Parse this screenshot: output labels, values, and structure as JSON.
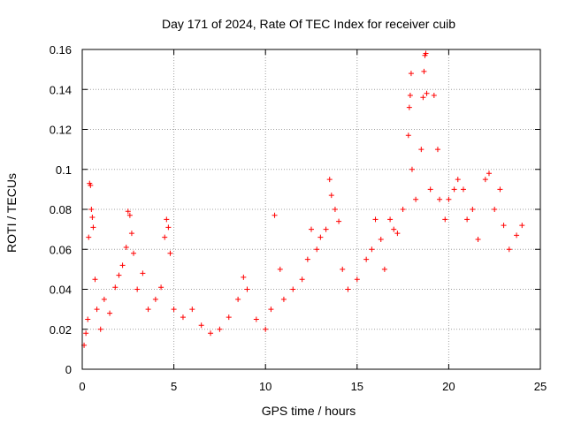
{
  "chart_data": {
    "type": "scatter",
    "title": "Day 171 of 2024, Rate Of TEC Index for receiver cuib",
    "xlabel": "GPS time / hours",
    "ylabel": "ROTI / TECUs",
    "xlim": [
      0,
      25
    ],
    "ylim": [
      0,
      0.16
    ],
    "xticks": [
      0,
      5,
      10,
      15,
      20,
      25
    ],
    "xtick_labels": [
      "0",
      "5",
      "10",
      "15",
      "20",
      "25"
    ],
    "yticks": [
      0,
      0.02,
      0.04,
      0.06,
      0.08,
      0.1,
      0.12,
      0.14,
      0.16
    ],
    "ytick_labels": [
      "0",
      "0.02",
      "0.04",
      "0.06",
      "0.08",
      "0.1",
      "0.12",
      "0.14",
      "0.16"
    ],
    "grid": true,
    "marker": "+",
    "color": "#ff0000",
    "series": [
      {
        "name": "ROTI",
        "points": [
          [
            0.1,
            0.012
          ],
          [
            0.2,
            0.018
          ],
          [
            0.3,
            0.025
          ],
          [
            0.35,
            0.066
          ],
          [
            0.4,
            0.093
          ],
          [
            0.45,
            0.092
          ],
          [
            0.5,
            0.08
          ],
          [
            0.55,
            0.076
          ],
          [
            0.6,
            0.071
          ],
          [
            0.7,
            0.045
          ],
          [
            0.8,
            0.03
          ],
          [
            1.0,
            0.02
          ],
          [
            1.2,
            0.035
          ],
          [
            1.5,
            0.028
          ],
          [
            1.8,
            0.041
          ],
          [
            2.0,
            0.047
          ],
          [
            2.2,
            0.052
          ],
          [
            2.4,
            0.061
          ],
          [
            2.5,
            0.079
          ],
          [
            2.6,
            0.077
          ],
          [
            2.7,
            0.068
          ],
          [
            2.8,
            0.058
          ],
          [
            3.0,
            0.04
          ],
          [
            3.3,
            0.048
          ],
          [
            3.6,
            0.03
          ],
          [
            4.0,
            0.035
          ],
          [
            4.3,
            0.041
          ],
          [
            4.5,
            0.066
          ],
          [
            4.6,
            0.075
          ],
          [
            4.7,
            0.071
          ],
          [
            4.8,
            0.058
          ],
          [
            5.0,
            0.03
          ],
          [
            5.5,
            0.026
          ],
          [
            6.0,
            0.03
          ],
          [
            6.5,
            0.022
          ],
          [
            7.0,
            0.018
          ],
          [
            7.5,
            0.02
          ],
          [
            8.0,
            0.026
          ],
          [
            8.5,
            0.035
          ],
          [
            8.8,
            0.046
          ],
          [
            9.0,
            0.04
          ],
          [
            9.5,
            0.025
          ],
          [
            10.0,
            0.02
          ],
          [
            10.3,
            0.03
          ],
          [
            10.5,
            0.077
          ],
          [
            10.8,
            0.05
          ],
          [
            11.0,
            0.035
          ],
          [
            11.5,
            0.04
          ],
          [
            12.0,
            0.045
          ],
          [
            12.3,
            0.055
          ],
          [
            12.5,
            0.07
          ],
          [
            12.8,
            0.06
          ],
          [
            13.0,
            0.066
          ],
          [
            13.3,
            0.07
          ],
          [
            13.5,
            0.095
          ],
          [
            13.6,
            0.087
          ],
          [
            13.8,
            0.08
          ],
          [
            14.0,
            0.074
          ],
          [
            14.2,
            0.05
          ],
          [
            14.5,
            0.04
          ],
          [
            15.0,
            0.045
          ],
          [
            15.5,
            0.055
          ],
          [
            15.8,
            0.06
          ],
          [
            16.0,
            0.075
          ],
          [
            16.3,
            0.065
          ],
          [
            16.5,
            0.05
          ],
          [
            16.8,
            0.075
          ],
          [
            17.0,
            0.07
          ],
          [
            17.2,
            0.068
          ],
          [
            17.5,
            0.08
          ],
          [
            17.8,
            0.117
          ],
          [
            17.85,
            0.131
          ],
          [
            17.9,
            0.137
          ],
          [
            17.95,
            0.148
          ],
          [
            18.0,
            0.1
          ],
          [
            18.2,
            0.085
          ],
          [
            18.5,
            0.11
          ],
          [
            18.6,
            0.136
          ],
          [
            18.65,
            0.149
          ],
          [
            18.7,
            0.157
          ],
          [
            18.75,
            0.158
          ],
          [
            18.8,
            0.138
          ],
          [
            19.0,
            0.09
          ],
          [
            19.2,
            0.137
          ],
          [
            19.4,
            0.11
          ],
          [
            19.5,
            0.085
          ],
          [
            19.8,
            0.075
          ],
          [
            20.0,
            0.085
          ],
          [
            20.3,
            0.09
          ],
          [
            20.5,
            0.095
          ],
          [
            20.8,
            0.09
          ],
          [
            21.0,
            0.075
          ],
          [
            21.3,
            0.08
          ],
          [
            21.6,
            0.065
          ],
          [
            22.0,
            0.095
          ],
          [
            22.2,
            0.098
          ],
          [
            22.5,
            0.08
          ],
          [
            22.8,
            0.09
          ],
          [
            23.0,
            0.072
          ],
          [
            23.3,
            0.06
          ],
          [
            23.7,
            0.067
          ],
          [
            24.0,
            0.072
          ]
        ]
      }
    ]
  }
}
